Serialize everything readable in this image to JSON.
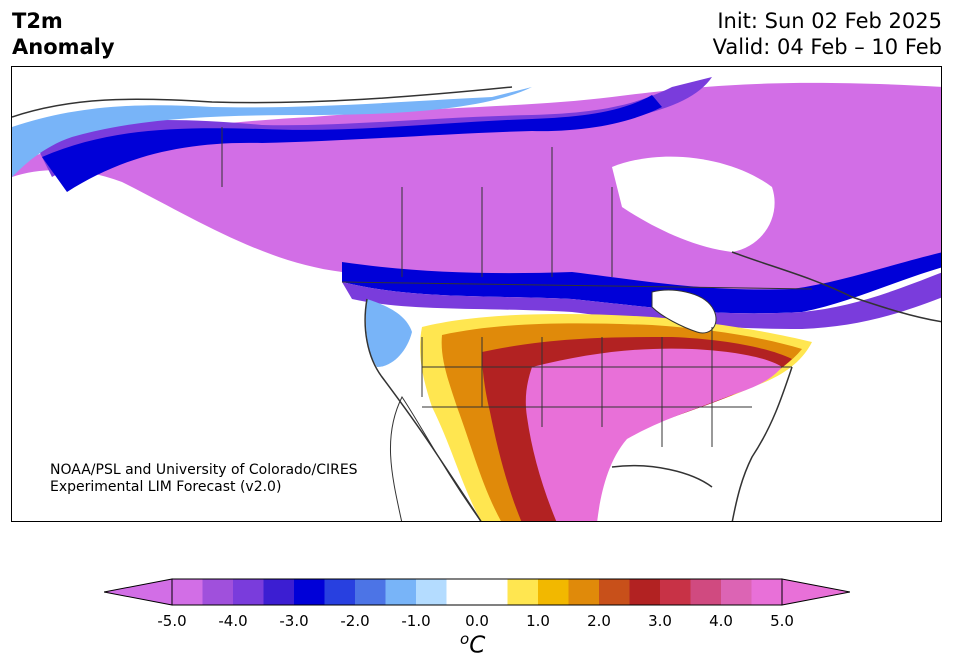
{
  "header": {
    "title_line1": "T2m",
    "title_line2": "Anomaly",
    "init_text": "Init: Sun 02 Feb 2025",
    "valid_text": "Valid: 04 Feb – 10 Feb"
  },
  "credit": {
    "line1": "NOAA/PSL and University of Colorado/CIRES",
    "line2": "Experimental LIM Forecast (v2.0)"
  },
  "colorbar": {
    "units_sup": "o",
    "units_main": "C",
    "min": -5.0,
    "max": 5.0,
    "step": 0.5,
    "tick_labels": [
      "-5.0",
      "-4.0",
      "-3.0",
      "-2.0",
      "-1.0",
      "0.0",
      "1.0",
      "2.0",
      "3.0",
      "4.0",
      "5.0"
    ],
    "colors": [
      "#d26ee6",
      "#a050dc",
      "#7a3cdc",
      "#3c1ed2",
      "#0000d8",
      "#2840e0",
      "#4c74e6",
      "#78b4f8",
      "#b4dcff",
      "#ffffff",
      "#ffffff",
      "#ffe650",
      "#f2b800",
      "#e08a0a",
      "#c8501a",
      "#b22222",
      "#c83246",
      "#d04a80",
      "#dc64b4",
      "#e870d8"
    ],
    "under_color": "#d26ee6",
    "over_color": "#e870d8"
  },
  "map_colors": {
    "neutral": "#ffffff",
    "ocean": "#ffffff",
    "lakes": "#ffffff",
    "borders": "#333333"
  }
}
